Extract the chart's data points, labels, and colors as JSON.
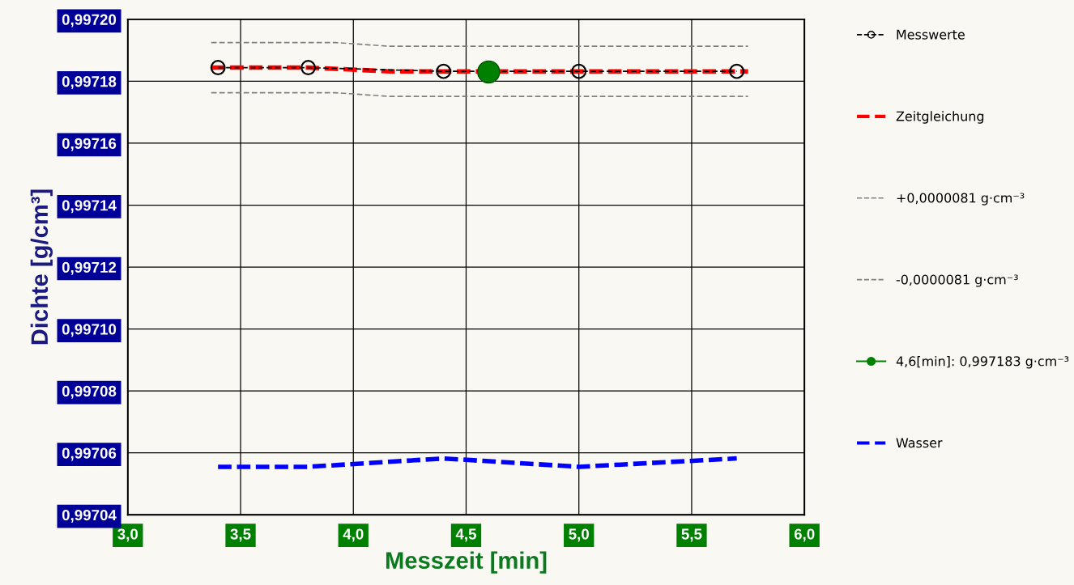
{
  "chart_data": {
    "type": "line",
    "xlabel": "Messzeit [min]",
    "ylabel": "Dichte [g/cm³]",
    "xlim": [
      3.0,
      6.0
    ],
    "xticks": [
      {
        "value": 3.0,
        "label": "3,0"
      },
      {
        "value": 3.5,
        "label": "3,5"
      },
      {
        "value": 4.0,
        "label": "4,0"
      },
      {
        "value": 4.5,
        "label": "4,5"
      },
      {
        "value": 5.0,
        "label": "5,0"
      },
      {
        "value": 5.5,
        "label": "5,5"
      },
      {
        "value": 6.0,
        "label": "6,0"
      }
    ],
    "ylim": [
      0.99704,
      0.9972
    ],
    "yticks": [
      {
        "value": 0.99704,
        "label": "0,99704"
      },
      {
        "value": 0.99706,
        "label": "0,99706"
      },
      {
        "value": 0.99708,
        "label": "0,99708"
      },
      {
        "value": 0.9971,
        "label": "0,99710"
      },
      {
        "value": 0.99712,
        "label": "0,99712"
      },
      {
        "value": 0.99714,
        "label": "0,99714"
      },
      {
        "value": 0.99716,
        "label": "0,99716"
      },
      {
        "value": 0.99718,
        "label": "0,99718"
      },
      {
        "value": 0.9972,
        "label": "0,99720"
      }
    ],
    "grid": true,
    "legend": "right",
    "series": [
      {
        "name": "Messwerte",
        "color": "#000000",
        "line_style": "dashed",
        "marker": "circle",
        "x": [
          3.4,
          3.8,
          4.4,
          5.0,
          5.7
        ],
        "values": [
          0.9971844,
          0.9971844,
          0.9971832,
          0.9971832,
          0.9971832
        ]
      },
      {
        "name": "Zeitgleichung",
        "color": "#ff0000",
        "line_style": "dashed",
        "marker": "none",
        "x": [
          3.37,
          3.8,
          4.16,
          5.75
        ],
        "values": [
          0.9971844,
          0.9971844,
          0.9971832,
          0.9971832
        ]
      },
      {
        "name": "+0,0000081 g·cm⁻³",
        "color": "#808080",
        "line_style": "dashed",
        "marker": "none",
        "x": [
          3.37,
          3.92,
          4.16,
          5.75
        ],
        "values": [
          0.9971925,
          0.9971925,
          0.9971913,
          0.9971913
        ]
      },
      {
        "name": "-0,0000081 g·cm⁻³",
        "color": "#808080",
        "line_style": "dashed",
        "marker": "none",
        "x": [
          3.37,
          3.92,
          4.16,
          5.75
        ],
        "values": [
          0.9971763,
          0.9971763,
          0.9971751,
          0.9971751
        ]
      },
      {
        "name": "4,6[min]: 0,997183 g·cm⁻³",
        "type": "scatter",
        "color": "#008000",
        "marker": "circle",
        "x": [
          4.6
        ],
        "values": [
          0.997183
        ]
      },
      {
        "name": "Wasser",
        "color": "#0000ff",
        "line_style": "dashed",
        "marker": "none",
        "x": [
          3.4,
          3.8,
          4.4,
          5.0,
          5.7
        ],
        "values": [
          0.9970555,
          0.9970555,
          0.9970582,
          0.9970555,
          0.9970582
        ]
      }
    ]
  }
}
